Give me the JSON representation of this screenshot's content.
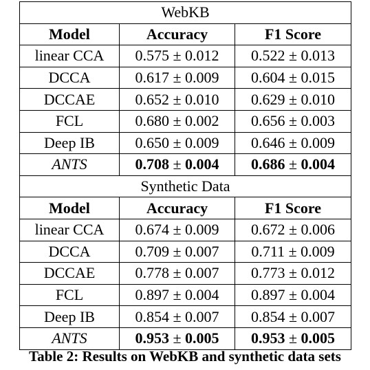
{
  "sections": [
    {
      "title": "WebKB",
      "headers": [
        "Model",
        "Accuracy",
        "F1 Score"
      ],
      "rows": [
        {
          "model": "linear CCA",
          "acc_mean": "0.575",
          "acc_std": "0.012",
          "f1_mean": "0.522",
          "f1_std": "0.013"
        },
        {
          "model": "DCCA",
          "acc_mean": "0.617",
          "acc_std": "0.009",
          "f1_mean": "0.604",
          "f1_std": "0.015"
        },
        {
          "model": "DCCAE",
          "acc_mean": "0.652",
          "acc_std": "0.010",
          "f1_mean": "0.629",
          "f1_std": "0.010"
        },
        {
          "model": "FCL",
          "acc_mean": "0.680",
          "acc_std": "0.002",
          "f1_mean": "0.656",
          "f1_std": "0.003"
        },
        {
          "model": "Deep IB",
          "acc_mean": "0.650",
          "acc_std": "0.009",
          "f1_mean": "0.646",
          "f1_std": "0.009"
        },
        {
          "model": "ANTS",
          "acc_mean": "0.708",
          "acc_std": "0.004",
          "f1_mean": "0.686",
          "f1_std": "0.004"
        }
      ]
    },
    {
      "title": "Synthetic Data",
      "headers": [
        "Model",
        "Accuracy",
        "F1 Score"
      ],
      "rows": [
        {
          "model": "linear CCA",
          "acc_mean": "0.674",
          "acc_std": "0.009",
          "f1_mean": "0.672",
          "f1_std": "0.006"
        },
        {
          "model": "DCCA",
          "acc_mean": "0.709",
          "acc_std": "0.007",
          "f1_mean": "0.711",
          "f1_std": "0.009"
        },
        {
          "model": "DCCAE",
          "acc_mean": "0.778",
          "acc_std": "0.007",
          "f1_mean": "0.773",
          "f1_std": "0.012"
        },
        {
          "model": "FCL",
          "acc_mean": "0.897",
          "acc_std": "0.004",
          "f1_mean": "0.897",
          "f1_std": "0.004"
        },
        {
          "model": "Deep IB",
          "acc_mean": "0.854",
          "acc_std": "0.007",
          "f1_mean": "0.854",
          "f1_std": "0.007"
        },
        {
          "model": "ANTS",
          "acc_mean": "0.953",
          "acc_std": "0.005",
          "f1_mean": "0.953",
          "f1_std": "0.005"
        }
      ]
    }
  ],
  "pm": "±",
  "caption": "Table 2: Results on WebKB and synthetic data sets"
}
